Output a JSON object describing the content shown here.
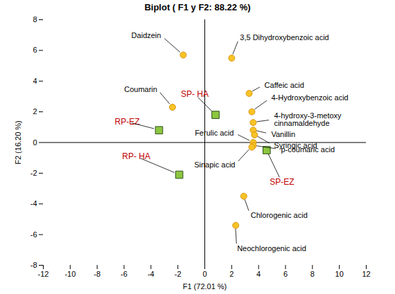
{
  "chart_data": {
    "type": "scatter",
    "title": "Biplot ( F1 y F2: 88.22 %)",
    "x_label": "F1 (72.01 %)",
    "y_label": "F2 (16.20 %)",
    "xlim": [
      -12,
      12
    ],
    "xticks": [
      -12,
      -10,
      -8,
      -6,
      -4,
      -2,
      0,
      2,
      4,
      6,
      8,
      10,
      12
    ],
    "ylim": [
      -8,
      8
    ],
    "yticks": [
      -8,
      -6,
      -4,
      -2,
      0,
      2,
      4,
      6,
      8
    ],
    "grid": false,
    "series": [
      {
        "marker": "circle",
        "color": "#f7c325",
        "labels": [
          "Daidzein",
          "3,5 Dihydroxybenzoic acid",
          "Coumarin",
          "Caffeic acid",
          "4-Hydroxybenzoic acid",
          "4-hydroxy-3-metoxy\ncinnamaldehyde",
          "Vanillin",
          "Syringic acid",
          "Ferulic acid",
          "p-coumaric acid",
          "Sinapic acid",
          "Chlorogenic acid",
          "Neochlorogenic acid"
        ],
        "x": [
          -1.6,
          2.0,
          -2.4,
          3.3,
          3.5,
          3.6,
          3.6,
          3.7,
          3.6,
          3.6,
          3.5,
          2.9,
          2.3
        ],
        "y": [
          5.7,
          5.5,
          2.3,
          3.2,
          2.0,
          1.3,
          0.8,
          0.5,
          0.0,
          -0.2,
          -0.3,
          -3.5,
          -5.4
        ]
      },
      {
        "marker": "square",
        "color": "#8cc63f",
        "labels": [
          "SP- HA",
          "RP-EZ",
          "RP- HA",
          "SP-EZ"
        ],
        "x": [
          0.8,
          -3.4,
          -1.9,
          4.6
        ],
        "y": [
          1.8,
          0.8,
          -2.1,
          -0.5
        ]
      }
    ]
  }
}
